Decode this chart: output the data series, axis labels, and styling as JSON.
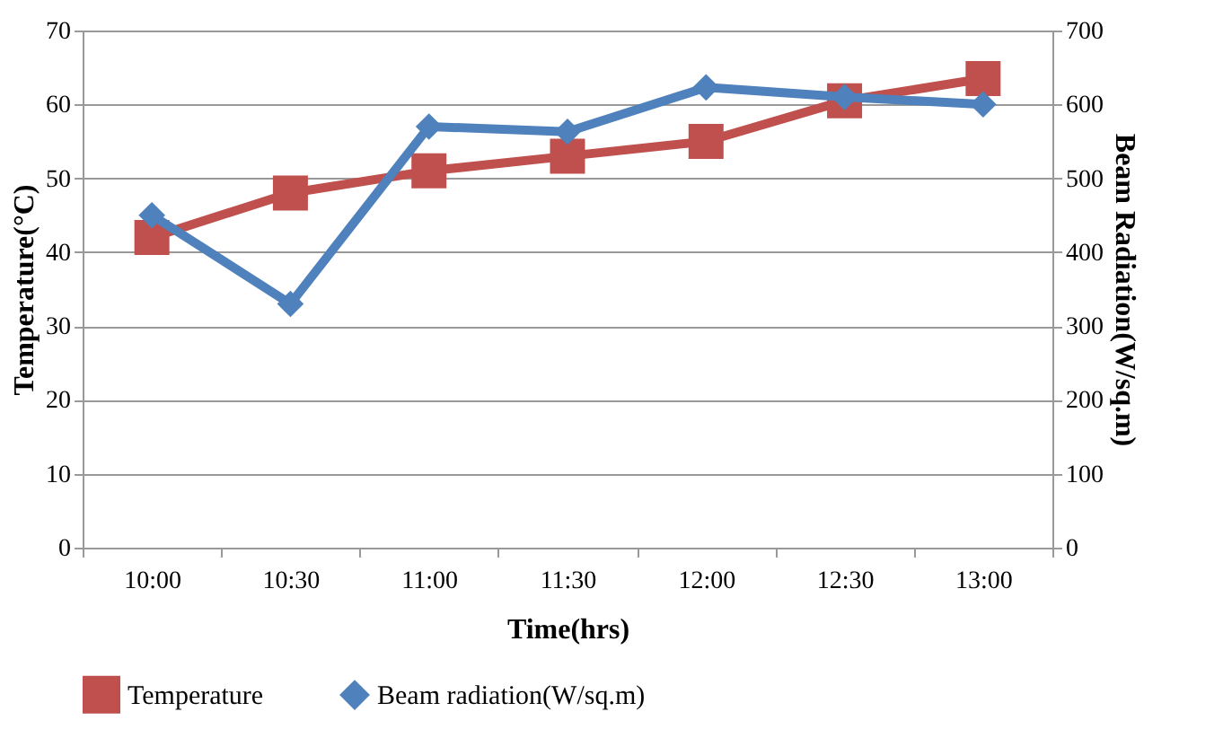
{
  "chart_data": {
    "type": "line",
    "xlabel": "Time(hrs)",
    "ylabel": "Temperature(°C)",
    "y2label": "Beam Radiation(W/sq.m)",
    "categories": [
      "10:00",
      "10:30",
      "11:00",
      "11:30",
      "12:00",
      "12:30",
      "13:00"
    ],
    "series": [
      {
        "name": "Temperature",
        "color": "#c0504d",
        "marker": "square",
        "values": [
          42,
          48,
          51,
          53,
          55,
          60.5,
          63.5
        ]
      },
      {
        "name": "Beam radiation(W/sq.m)",
        "color": "#4f81bd",
        "marker": "diamond",
        "axis": "y2",
        "values": [
          450,
          330,
          570,
          563,
          623,
          610,
          600
        ]
      }
    ],
    "ylim": [
      0,
      70
    ],
    "yticks": [
      0,
      10,
      20,
      30,
      40,
      50,
      60,
      70
    ],
    "y2lim": [
      0,
      700
    ],
    "y2ticks": [
      0,
      100,
      200,
      300,
      400,
      500,
      600,
      700
    ],
    "grid": "y",
    "legend": "bottom"
  }
}
